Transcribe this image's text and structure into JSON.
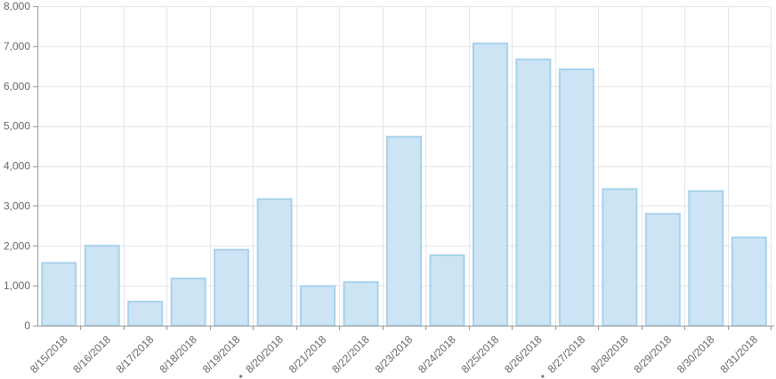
{
  "chart_data": {
    "type": "bar",
    "categories": [
      "8/15/2018",
      "8/16/2018",
      "8/17/2018",
      "8/18/2018",
      "8/19/2018",
      "8/20/2018",
      "8/21/2018",
      "8/22/2018",
      "8/23/2018",
      "8/24/2018",
      "8/25/2018",
      "8/26/2018",
      "8/27/2018",
      "8/28/2018",
      "8/29/2018",
      "8/30/2018",
      "8/31/2018"
    ],
    "values": [
      1570,
      2000,
      600,
      1180,
      1900,
      3170,
      990,
      1090,
      4730,
      1760,
      7070,
      6670,
      6420,
      3420,
      2800,
      3370,
      2210
    ],
    "ylim": [
      0,
      8000
    ],
    "yticks": [
      "0",
      "1,000",
      "2,000",
      "3,000",
      "4,000",
      "5,000",
      "6,000",
      "7,000",
      "8,000"
    ],
    "ytick_values": [
      0,
      1000,
      2000,
      3000,
      4000,
      5000,
      6000,
      7000,
      8000
    ],
    "marked_categories": [
      "8/20/2018",
      "8/27/2018"
    ],
    "grid": true,
    "bar_fill": "#cde4f4",
    "bar_stroke": "#a7d2ec"
  }
}
